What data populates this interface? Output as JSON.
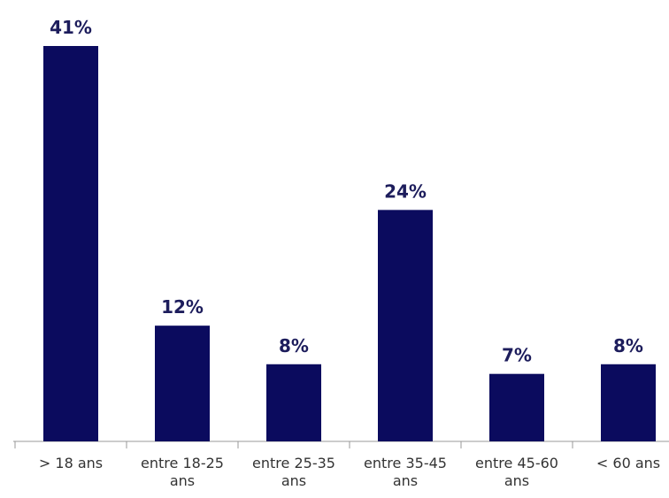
{
  "chart_data": {
    "type": "bar",
    "categories": [
      "> 18 ans",
      "entre 18-25 ans",
      "entre 25-35 ans",
      "entre 35-45 ans",
      "entre 45-60 ans",
      "< 60 ans"
    ],
    "values": [
      41,
      12,
      8,
      24,
      7,
      8
    ],
    "value_labels": [
      "41%",
      "12%",
      "8%",
      "24%",
      "7%",
      "8%"
    ],
    "color": "#0b0b5e"
  }
}
